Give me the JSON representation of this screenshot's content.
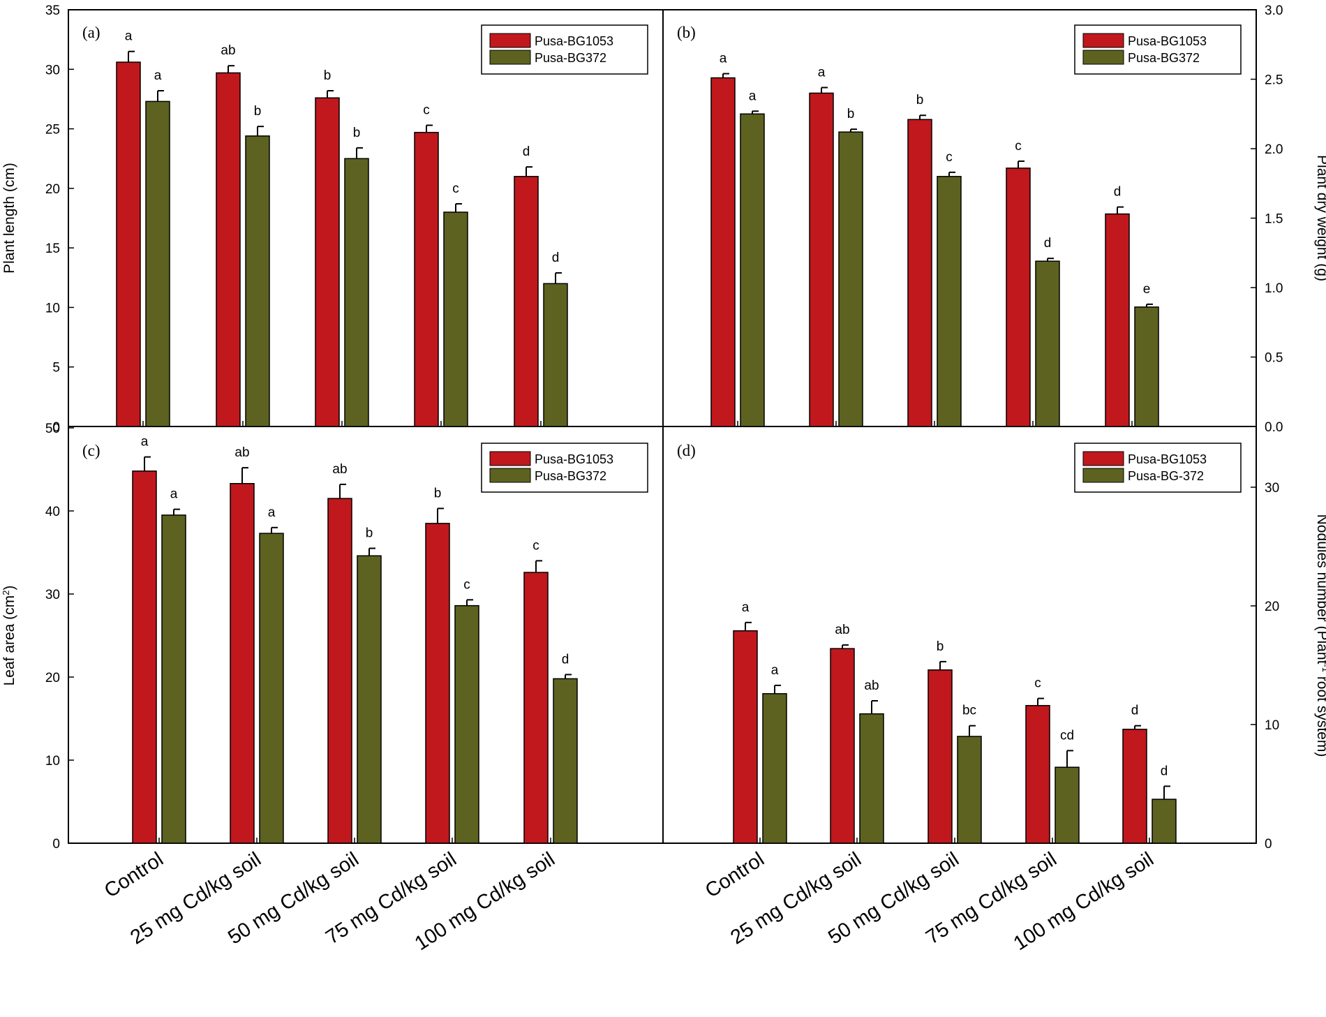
{
  "colors": {
    "series1": "#c0181d",
    "series2": "#5d6220",
    "axis": "#000000"
  },
  "categories": [
    "Control",
    "25 mg Cd/kg soil",
    "50 mg Cd/kg soil",
    "75 mg Cd/kg soil",
    "100 mg Cd/kg soil"
  ],
  "chart_data": [
    {
      "type": "bar",
      "panel_label": "(a)",
      "ylabel": "Plant length (cm)",
      "ylabel_html": "Plant length (cm)",
      "ylim": [
        0,
        35
      ],
      "yticks": [
        0,
        5,
        10,
        15,
        20,
        25,
        30,
        35
      ],
      "ytick_labels": [
        "0",
        "5",
        "10",
        "15",
        "20",
        "25",
        "30",
        "35"
      ],
      "axis_side": "left",
      "legend_position": "top-right",
      "series": [
        {
          "name": "Pusa-BG1053",
          "values": [
            30.6,
            29.7,
            27.6,
            24.7,
            21.0
          ],
          "errors": [
            0.9,
            0.6,
            0.6,
            0.6,
            0.8
          ],
          "letters": [
            "a",
            "ab",
            "b",
            "c",
            "d"
          ]
        },
        {
          "name": "Pusa-BG372",
          "values": [
            27.3,
            24.4,
            22.5,
            18.0,
            12.0
          ],
          "errors": [
            0.9,
            0.8,
            0.9,
            0.7,
            0.9
          ],
          "letters": [
            "a",
            "b",
            "b",
            "c",
            "d"
          ]
        }
      ]
    },
    {
      "type": "bar",
      "panel_label": "(b)",
      "ylabel": "Plant dry weight (g)",
      "ylabel_html": "Plant dry weight (g)",
      "ylim": [
        0,
        3.0
      ],
      "yticks": [
        0,
        0.5,
        1.0,
        1.5,
        2.0,
        2.5,
        3.0
      ],
      "ytick_labels": [
        "0.0",
        "0.5",
        "1.0",
        "1.5",
        "2.0",
        "2.5",
        "3.0"
      ],
      "axis_side": "right",
      "legend_position": "top-right",
      "series": [
        {
          "name": "Pusa-BG1053",
          "values": [
            2.51,
            2.4,
            2.21,
            1.86,
            1.53
          ],
          "errors": [
            0.03,
            0.04,
            0.03,
            0.05,
            0.05
          ],
          "letters": [
            "a",
            "a",
            "b",
            "c",
            "d"
          ]
        },
        {
          "name": "Pusa-BG372",
          "values": [
            2.25,
            2.12,
            1.8,
            1.19,
            0.86
          ],
          "errors": [
            0.02,
            0.02,
            0.03,
            0.02,
            0.02
          ],
          "letters": [
            "a",
            "b",
            "c",
            "d",
            "e"
          ]
        }
      ]
    },
    {
      "type": "bar",
      "panel_label": "(c)",
      "ylabel": "Leaf area (cm2)",
      "ylabel_main": "Leaf area (cm",
      "ylabel_sup": "2",
      "ylabel_end": ")",
      "ylim": [
        0,
        50
      ],
      "yticks": [
        0,
        10,
        20,
        30,
        40,
        50
      ],
      "ytick_labels": [
        "0",
        "10",
        "20",
        "30",
        "40",
        "50"
      ],
      "axis_side": "left",
      "legend_position": "top-right",
      "series": [
        {
          "name": "Pusa-BG1053",
          "values": [
            44.8,
            43.3,
            41.5,
            38.5,
            32.6
          ],
          "errors": [
            1.7,
            1.9,
            1.7,
            1.8,
            1.4
          ],
          "letters": [
            "a",
            "ab",
            "ab",
            "b",
            "c"
          ]
        },
        {
          "name": "Pusa-BG372",
          "values": [
            39.5,
            37.3,
            34.6,
            28.6,
            19.8
          ],
          "errors": [
            0.7,
            0.7,
            0.9,
            0.7,
            0.5
          ],
          "letters": [
            "a",
            "a",
            "b",
            "c",
            "d"
          ]
        }
      ]
    },
    {
      "type": "bar",
      "panel_label": "(d)",
      "ylabel": "Nodules number (Plant-1 root system)",
      "ylabel_main": "Nodules number (Plant",
      "ylabel_sup": "-1",
      "ylabel_end": " root  system)",
      "ylim": [
        0,
        35
      ],
      "yticks": [
        0,
        10,
        20,
        30
      ],
      "ytick_labels": [
        "0",
        "10",
        "20",
        "30"
      ],
      "axis_side": "right",
      "legend_position": "top-right",
      "series": [
        {
          "name": "Pusa-BG1053",
          "values": [
            17.9,
            16.4,
            14.6,
            11.6,
            9.6
          ],
          "errors": [
            0.7,
            0.3,
            0.7,
            0.6,
            0.3
          ],
          "letters": [
            "a",
            "ab",
            "b",
            "c",
            "d"
          ]
        },
        {
          "name": "Pusa-BG-372",
          "values": [
            12.6,
            10.9,
            9.0,
            6.4,
            3.7
          ],
          "errors": [
            0.7,
            1.1,
            0.9,
            1.4,
            1.1
          ],
          "letters": [
            "a",
            "ab",
            "bc",
            "cd",
            "d"
          ]
        }
      ]
    }
  ]
}
